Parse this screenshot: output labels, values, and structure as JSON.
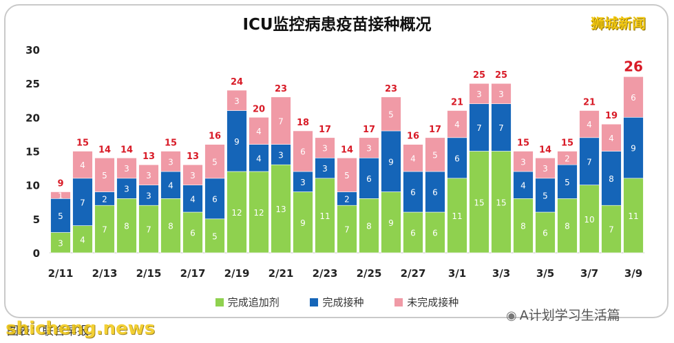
{
  "brand": "狮城新闻",
  "credit": "图表：联合早报",
  "watermark": "shicheng.news",
  "wechat": {
    "icon": "wechat-icon",
    "text": "A计划学习生活篇"
  },
  "colors": {
    "done_booster": "#8fd14f",
    "done_vaccine": "#1565b8",
    "not_done": "#f09aa6",
    "total_label": "#d81b27"
  },
  "chart_data": {
    "type": "bar",
    "stacked": true,
    "title": "ICU监控病患疫苗接种概况",
    "xlabel": "",
    "ylabel": "",
    "ylim": [
      0,
      30
    ],
    "yticks": [
      0,
      5,
      10,
      15,
      20,
      25,
      30
    ],
    "grid": false,
    "legend_position": "bottom",
    "categories": [
      "2/11",
      "2/12",
      "2/13",
      "2/14",
      "2/15",
      "2/16",
      "2/17",
      "2/18",
      "2/19",
      "2/20",
      "2/21",
      "2/22",
      "2/23",
      "2/24",
      "2/25",
      "2/26",
      "2/27",
      "2/28",
      "3/1",
      "3/2",
      "3/3",
      "3/4",
      "3/5",
      "3/6",
      "3/7",
      "3/8",
      "3/9"
    ],
    "shown_tick_labels": [
      "2/11",
      "2/13",
      "2/15",
      "2/17",
      "2/19",
      "2/21",
      "2/23",
      "2/25",
      "2/27",
      "3/1",
      "3/3",
      "3/5",
      "3/7",
      "3/9"
    ],
    "series": [
      {
        "name": "完成追加剂",
        "values": [
          3,
          4,
          7,
          8,
          7,
          8,
          6,
          5,
          12,
          12,
          13,
          9,
          11,
          7,
          8,
          9,
          6,
          6,
          11,
          15,
          15,
          8,
          6,
          8,
          10,
          7,
          11
        ]
      },
      {
        "name": "完成接种",
        "values": [
          5,
          7,
          2,
          3,
          3,
          4,
          4,
          6,
          9,
          4,
          3,
          3,
          3,
          2,
          6,
          9,
          6,
          6,
          6,
          7,
          7,
          4,
          5,
          5,
          7,
          8,
          9
        ]
      },
      {
        "name": "未完成接种",
        "values": [
          1,
          4,
          5,
          3,
          3,
          3,
          3,
          5,
          3,
          4,
          7,
          6,
          3,
          5,
          3,
          5,
          4,
          5,
          4,
          3,
          3,
          3,
          3,
          2,
          4,
          4,
          6
        ]
      }
    ],
    "totals": [
      9,
      15,
      14,
      14,
      13,
      15,
      13,
      16,
      24,
      20,
      23,
      18,
      17,
      14,
      17,
      23,
      16,
      17,
      21,
      25,
      25,
      15,
      14,
      15,
      21,
      19,
      26
    ],
    "highlight_last_total": true
  }
}
